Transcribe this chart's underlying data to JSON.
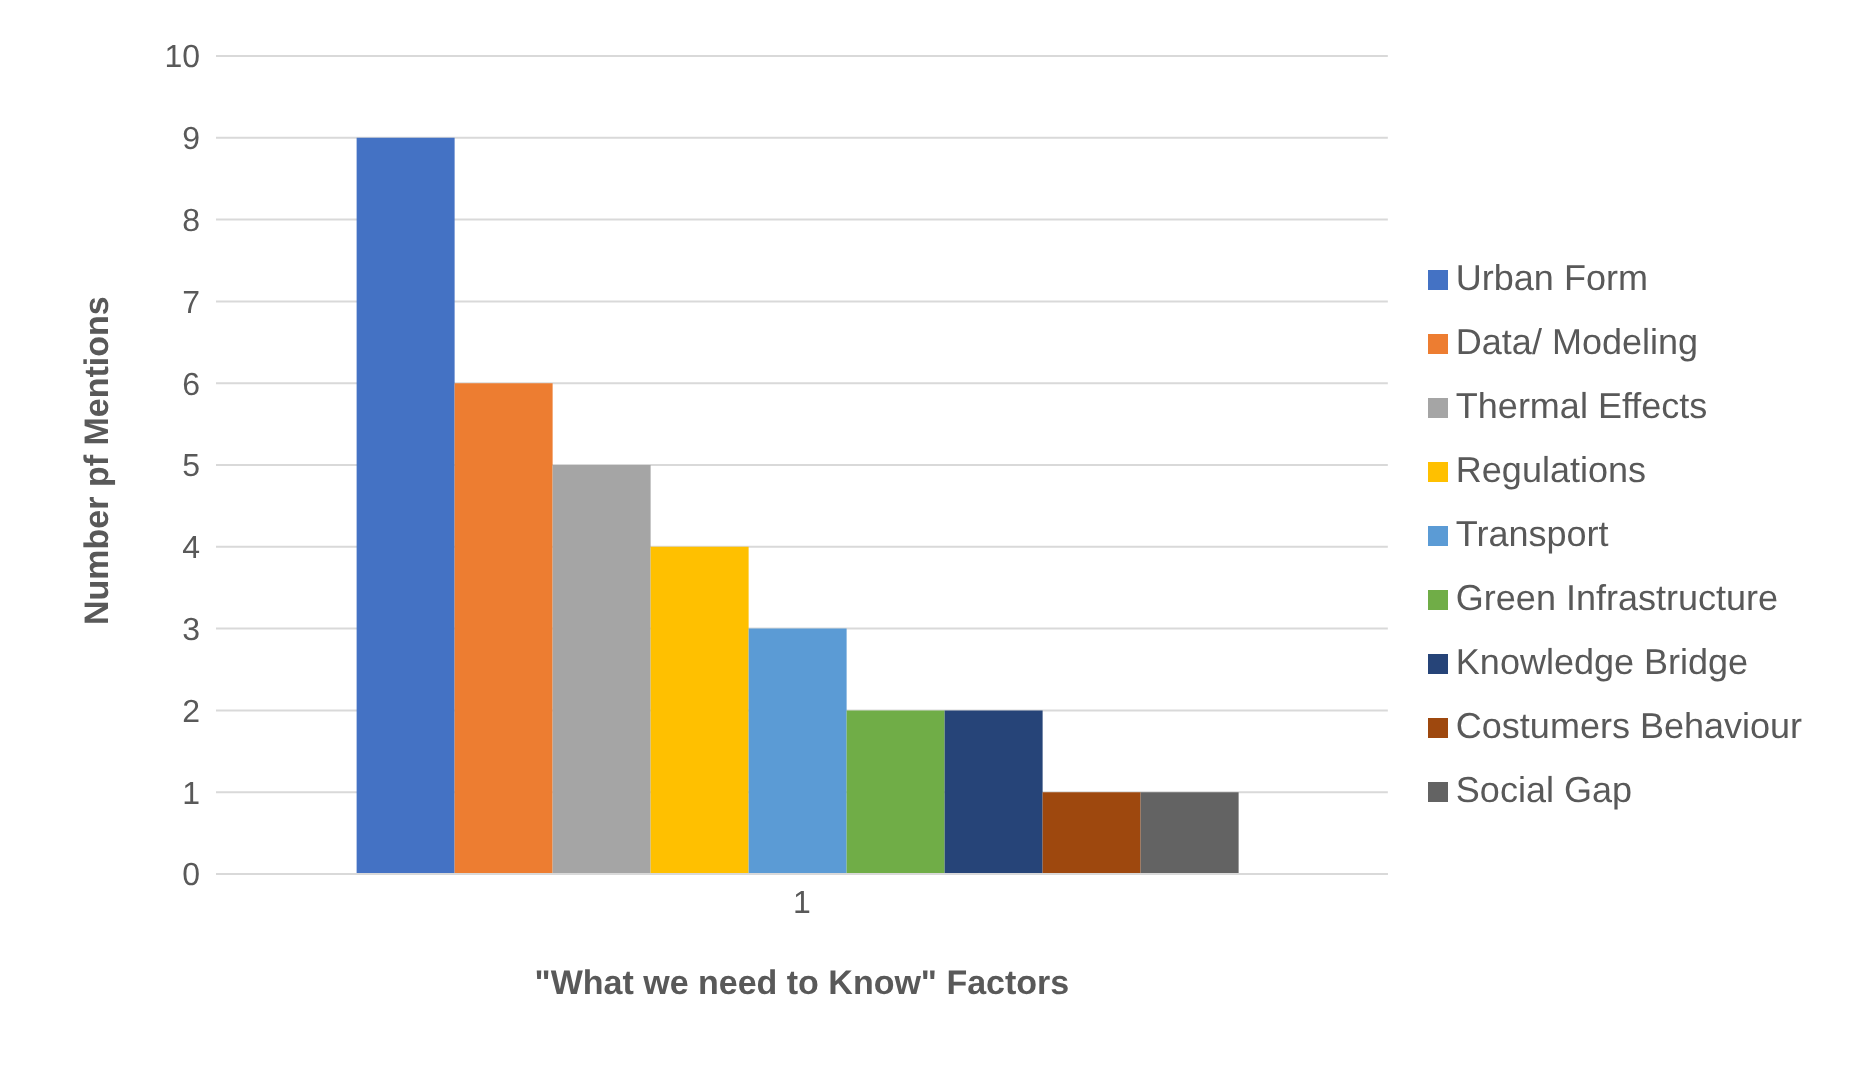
{
  "chart_data": {
    "type": "bar",
    "xlabel": "\"What we need to Know\" Factors",
    "ylabel": "Number pf Mentions",
    "categories": [
      "1"
    ],
    "series": [
      {
        "name": "Urban Form",
        "color": "#4472c4",
        "values": [
          9
        ]
      },
      {
        "name": "Data/ Modeling",
        "color": "#ed7d31",
        "values": [
          6
        ]
      },
      {
        "name": "Thermal Effects",
        "color": "#a5a5a5",
        "values": [
          5
        ]
      },
      {
        "name": "Regulations",
        "color": "#ffc000",
        "values": [
          4
        ]
      },
      {
        "name": "Transport",
        "color": "#5b9bd5",
        "values": [
          3
        ]
      },
      {
        "name": "Green Infrastructure",
        "color": "#70ad47",
        "values": [
          2
        ]
      },
      {
        "name": "Knowledge Bridge",
        "color": "#264478",
        "values": [
          2
        ]
      },
      {
        "name": "Costumers Behaviour",
        "color": "#9e480e",
        "values": [
          1
        ]
      },
      {
        "name": "Social Gap",
        "color": "#636363",
        "values": [
          1
        ]
      }
    ],
    "ylim": [
      0,
      10
    ],
    "yticks": [
      0,
      1,
      2,
      3,
      4,
      5,
      6,
      7,
      8,
      9,
      10
    ],
    "grid": "y",
    "legend": "right"
  }
}
